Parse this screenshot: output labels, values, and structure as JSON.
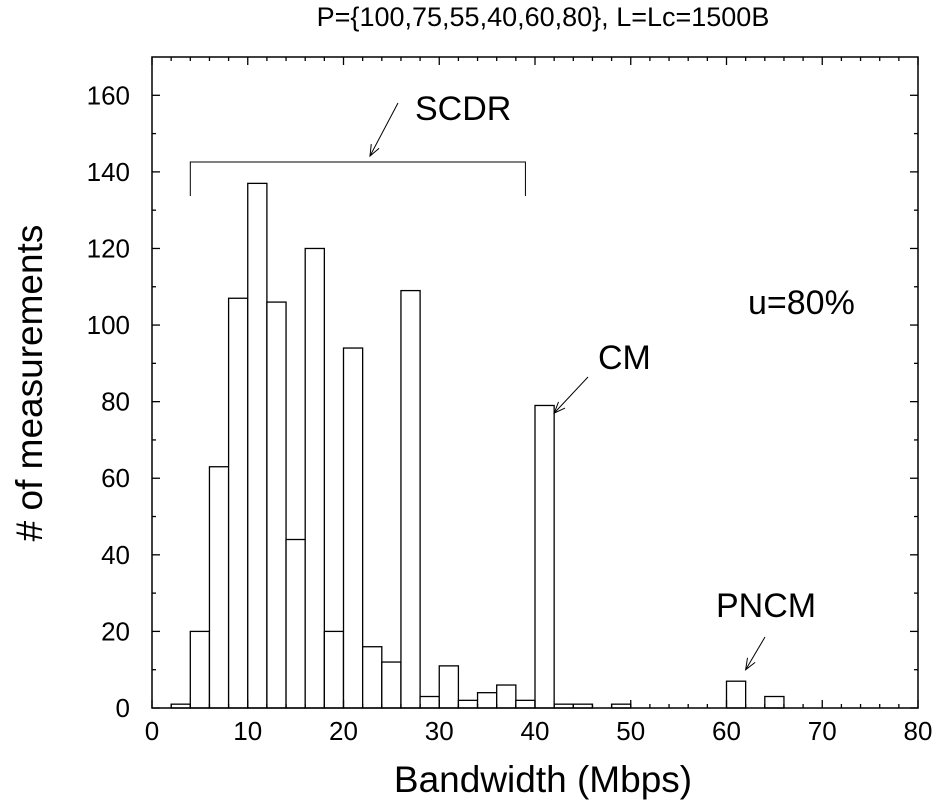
{
  "chart_data": {
    "type": "bar",
    "title": "P={100,75,55,40,60,80}, L=Lc=1500B",
    "xlabel": "Bandwidth (Mbps)",
    "ylabel": "# of measurements",
    "xlim": [
      0,
      80
    ],
    "ylim": [
      0,
      170
    ],
    "xticks": [
      0,
      10,
      20,
      30,
      40,
      50,
      60,
      70,
      80
    ],
    "yticks": [
      0,
      20,
      40,
      60,
      80,
      100,
      120,
      140,
      160
    ],
    "bin_width": 2,
    "bins": [
      {
        "x0": 2,
        "value": 1
      },
      {
        "x0": 4,
        "value": 20
      },
      {
        "x0": 6,
        "value": 63
      },
      {
        "x0": 8,
        "value": 107
      },
      {
        "x0": 10,
        "value": 137
      },
      {
        "x0": 12,
        "value": 106
      },
      {
        "x0": 14,
        "value": 44
      },
      {
        "x0": 16,
        "value": 120
      },
      {
        "x0": 18,
        "value": 20
      },
      {
        "x0": 20,
        "value": 94
      },
      {
        "x0": 22,
        "value": 16
      },
      {
        "x0": 24,
        "value": 12
      },
      {
        "x0": 26,
        "value": 109
      },
      {
        "x0": 28,
        "value": 3
      },
      {
        "x0": 30,
        "value": 11
      },
      {
        "x0": 32,
        "value": 2
      },
      {
        "x0": 34,
        "value": 4
      },
      {
        "x0": 36,
        "value": 6
      },
      {
        "x0": 38,
        "value": 2
      },
      {
        "x0": 40,
        "value": 79
      },
      {
        "x0": 42,
        "value": 1
      },
      {
        "x0": 44,
        "value": 1
      },
      {
        "x0": 48,
        "value": 1
      },
      {
        "x0": 60,
        "value": 7
      },
      {
        "x0": 64,
        "value": 3
      }
    ],
    "grid": false,
    "annotations": {
      "u": "u=80%",
      "scdr": {
        "label": "SCDR",
        "range": [
          4,
          39
        ]
      },
      "cm": {
        "label": "CM",
        "target": [
          42,
          77
        ]
      },
      "pncm": {
        "label": "PNCM",
        "target": [
          62,
          10
        ]
      }
    }
  }
}
